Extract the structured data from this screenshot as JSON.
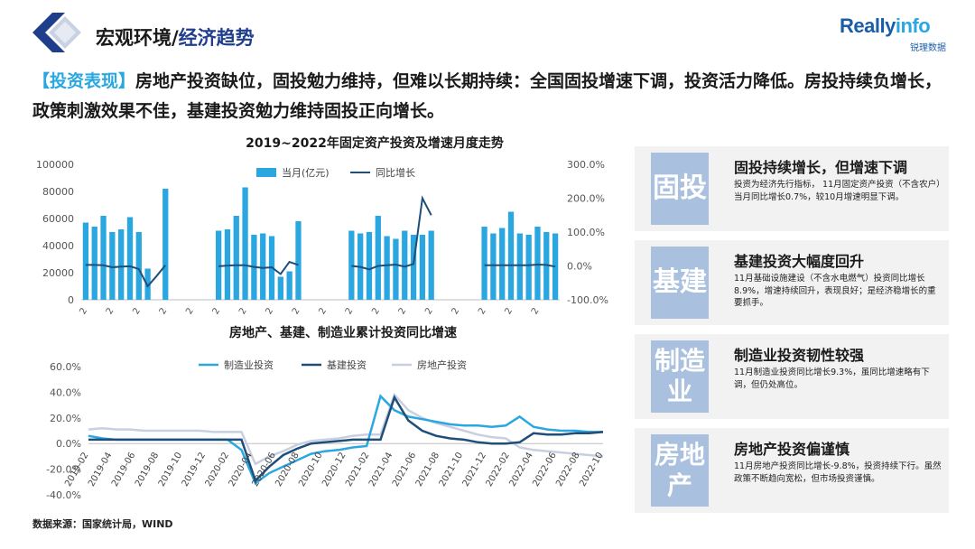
{
  "header": {
    "section_title_main": "宏观环境/",
    "section_title_sub": "经济趋势",
    "brand_name_a": "Really",
    "brand_name_b": "info",
    "brand_sub": "锐理数据"
  },
  "headline": {
    "tag": "【投资表现】",
    "text": "房地产投资缺位，固投勉力维持，但难以长期持续：全国固投增速下调，投资活力降低。房投持续负增长，政策刺激效果不佳，基建投资勉力维持固投正向增长。"
  },
  "colors": {
    "bar": "#2aa7e0",
    "yoy_line": "#1f4e79",
    "manufacturing": "#2aa7e0",
    "infrastructure": "#1f4e79",
    "real_estate": "#c8cfe0",
    "card_bg": "#f2f2f2",
    "card_box": "#a9c0de"
  },
  "chart_data": [
    {
      "type": "bar+line",
      "title": "2019~2022年固定资产投资及增速月度走势",
      "legend": [
        "当月(亿元)",
        "同比增长"
      ],
      "x_tick_label": "2",
      "y_left_ticks": [
        "100000",
        "80000",
        "60000",
        "40000",
        "20000",
        "0"
      ],
      "y_right_ticks": [
        "300.0%",
        "200.0%",
        "100.0%",
        "0.0%",
        "-100.0%"
      ],
      "ylim_left": [
        0,
        100000
      ],
      "ylim_right": [
        -100,
        300
      ],
      "bars": [
        57000,
        54000,
        62000,
        50000,
        52000,
        61000,
        50000,
        23000,
        0,
        82000,
        null,
        null,
        null,
        null,
        null,
        51000,
        52000,
        62000,
        83000,
        48000,
        49000,
        47000,
        17000,
        21000,
        58000,
        null,
        null,
        null,
        null,
        null,
        51000,
        49000,
        50000,
        62000,
        47000,
        45000,
        51000,
        48000,
        48000,
        51000,
        null,
        null,
        null,
        null,
        null,
        54000,
        49000,
        53000,
        65000,
        49000,
        48000,
        54000,
        50000,
        49000
      ],
      "yoy": [
        3,
        3,
        2,
        -4,
        -2,
        -1,
        -9,
        -60,
        -30,
        2,
        null,
        null,
        null,
        null,
        null,
        -1,
        1,
        2,
        2,
        -3,
        -6,
        -4,
        -24,
        12,
        3,
        null,
        null,
        null,
        null,
        null,
        0,
        -3,
        -10,
        0,
        2,
        4,
        -2,
        6,
        200,
        150,
        null,
        null,
        null,
        null,
        null,
        2,
        2,
        2,
        2,
        2,
        2,
        4,
        3,
        -2
      ]
    },
    {
      "type": "line",
      "title": "房地产、基建、制造业累计投资同比增速",
      "legend": [
        "制造业投资",
        "基建投资",
        "房地产投资"
      ],
      "y_ticks": [
        "60.0%",
        "40.0%",
        "20.0%",
        "0.0%",
        "-20.0%",
        "-40.0%"
      ],
      "ylim": [
        -40,
        60
      ],
      "x_labels": [
        "2019-02",
        "2019-04",
        "2019-06",
        "2019-08",
        "2019-10",
        "2019-12",
        "2020-02",
        "2020-04",
        "2020-06",
        "2020-08",
        "2020-10",
        "2020-12",
        "2021-02",
        "2021-04",
        "2021-06",
        "2021-08",
        "2021-10",
        "2021-12",
        "2022-02",
        "2022-04",
        "2022-06",
        "2022-08",
        "2022-10"
      ],
      "series": [
        {
          "name": "制造业投资",
          "values": [
            6,
            4,
            3,
            3,
            3,
            3,
            3,
            3,
            3,
            3,
            3,
            -5,
            -31,
            -23,
            -18,
            -13,
            -8,
            -6,
            -5,
            -3,
            -2,
            37,
            26,
            21,
            19,
            17,
            15,
            14,
            14,
            13,
            14,
            21,
            13,
            11,
            10,
            10,
            9,
            9
          ]
        },
        {
          "name": "基建投资",
          "values": [
            3,
            3,
            3,
            3,
            3,
            3,
            3,
            3,
            3,
            3,
            3,
            3,
            -29,
            -18,
            -9,
            -4,
            0,
            1,
            2,
            3,
            3,
            3,
            36,
            18,
            10,
            6,
            4,
            3,
            1,
            0,
            0,
            1,
            8,
            7,
            7,
            8,
            8,
            9
          ]
        },
        {
          "name": "房地产投资",
          "values": [
            11,
            12,
            11,
            11,
            10,
            10,
            10,
            10,
            10,
            9,
            9,
            9,
            -16,
            -10,
            -6,
            -1,
            2,
            3,
            4,
            6,
            7,
            7,
            38,
            26,
            20,
            16,
            13,
            10,
            7,
            5,
            4,
            -3,
            -5,
            -6,
            -7,
            -8,
            -9,
            -10
          ]
        }
      ]
    }
  ],
  "cards": [
    {
      "box": "固投",
      "title": "固投持续增长，但增速下调",
      "text": "投资为经济先行指标，  11月固定资产投资（不含农户）当月同比增长0.7%，较10月增速明显下调。"
    },
    {
      "box": "基建",
      "title": "基建投资大幅度回升",
      "text": "11月基础设施建设（不含水电燃气）投资同比增长8.9%，增速持续回升，表现良好；是经济稳增长的重要抓手。"
    },
    {
      "box": "制造业",
      "title": "制造业投资韧性较强",
      "text": "11月制造业投资同比增长9.3%，虽同比增速略有下调，但仍处高位。"
    },
    {
      "box": "房地产",
      "title": "房地产投资偏谨慎",
      "text": "11月房地产投资同比增长-9.8%，投资持续下行。虽然政策不断趋向宽松，但市场投资谨慎。"
    }
  ],
  "source": "数据来源：国家统计局，WIND"
}
